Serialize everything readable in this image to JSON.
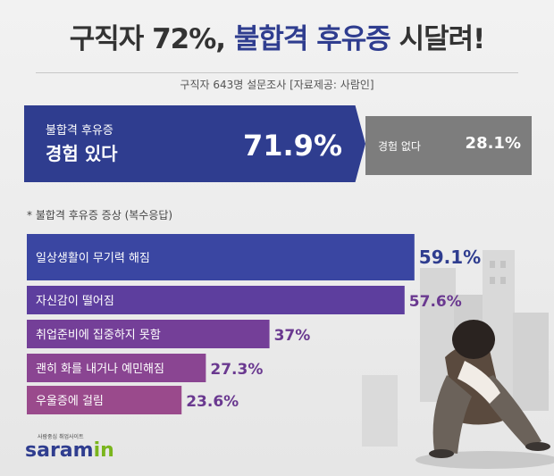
{
  "title": {
    "part1": "구직자 72%,",
    "part2": "불합격 후유증",
    "part3": "시달려!"
  },
  "subtitle": "구직자 643명 설문조사 [자료제공: 사람인]",
  "colors": {
    "navy": "#2f3d8f",
    "grey": "#7d7d7d",
    "purple_start": "#3e46a0",
    "purple_end": "#a2488a"
  },
  "experience": {
    "yes_label_line1": "불합격 후유증",
    "yes_label_line2": "경험 있다",
    "yes_value": "71.9%",
    "no_label": "경험 없다",
    "no_value": "28.1%"
  },
  "note": "* 불합격 후유증 증상 (복수응답)",
  "chart_data": {
    "type": "bar",
    "orientation": "horizontal",
    "title": "* 불합격 후유증 증상 (복수응답)",
    "categories": [
      "일상생활이 무기력 해짐",
      "자신감이 떨어짐",
      "취업준비에 집중하지 못함",
      "괜히 화를 내거나 예민해짐",
      "우울증에 걸림"
    ],
    "values": [
      59.1,
      57.6,
      37,
      27.3,
      23.6
    ],
    "value_labels": [
      "59.1%",
      "57.6%",
      "37%",
      "27.3%",
      "23.6%"
    ],
    "unit": "%"
  },
  "logo": {
    "tagline": "사람중심 취업사이트",
    "name_main": "saram",
    "name_accent": "in"
  }
}
